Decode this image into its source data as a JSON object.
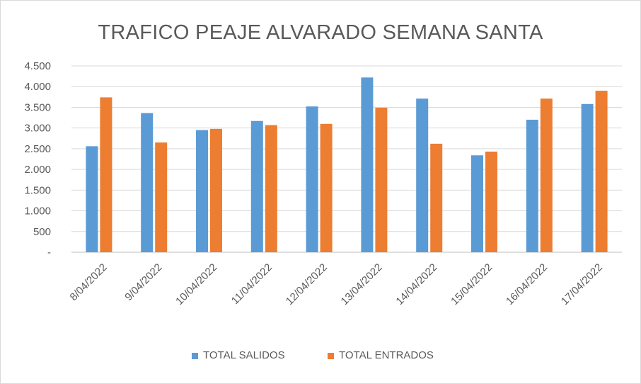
{
  "chart_data": {
    "type": "bar",
    "title": "TRAFICO PEAJE ALVARADO SEMANA SANTA",
    "categories": [
      "8/04/2022",
      "9/04/2022",
      "10/04/2022",
      "11/04/2022",
      "12/04/2022",
      "13/04/2022",
      "14/04/2022",
      "15/04/2022",
      "16/04/2022",
      "17/04/2022"
    ],
    "series": [
      {
        "name": "TOTAL SALIDOS",
        "color": "#5b9bd5",
        "values": [
          2560,
          3360,
          2950,
          3170,
          3520,
          4220,
          3710,
          2340,
          3200,
          3580
        ]
      },
      {
        "name": "TOTAL ENTRADOS",
        "color": "#ed7d31",
        "values": [
          3740,
          2650,
          2980,
          3070,
          3100,
          3490,
          2620,
          2430,
          3710,
          3900
        ]
      }
    ],
    "ylim": [
      0,
      4500
    ],
    "yticks": [
      0,
      500,
      1000,
      1500,
      2000,
      2500,
      3000,
      3500,
      4000,
      4500
    ],
    "ytick_labels": [
      "-",
      "500",
      "1.000",
      "1.500",
      "2.000",
      "2.500",
      "3.000",
      "3.500",
      "4.000",
      "4.500"
    ],
    "grid": true,
    "legend_position": "bottom"
  }
}
